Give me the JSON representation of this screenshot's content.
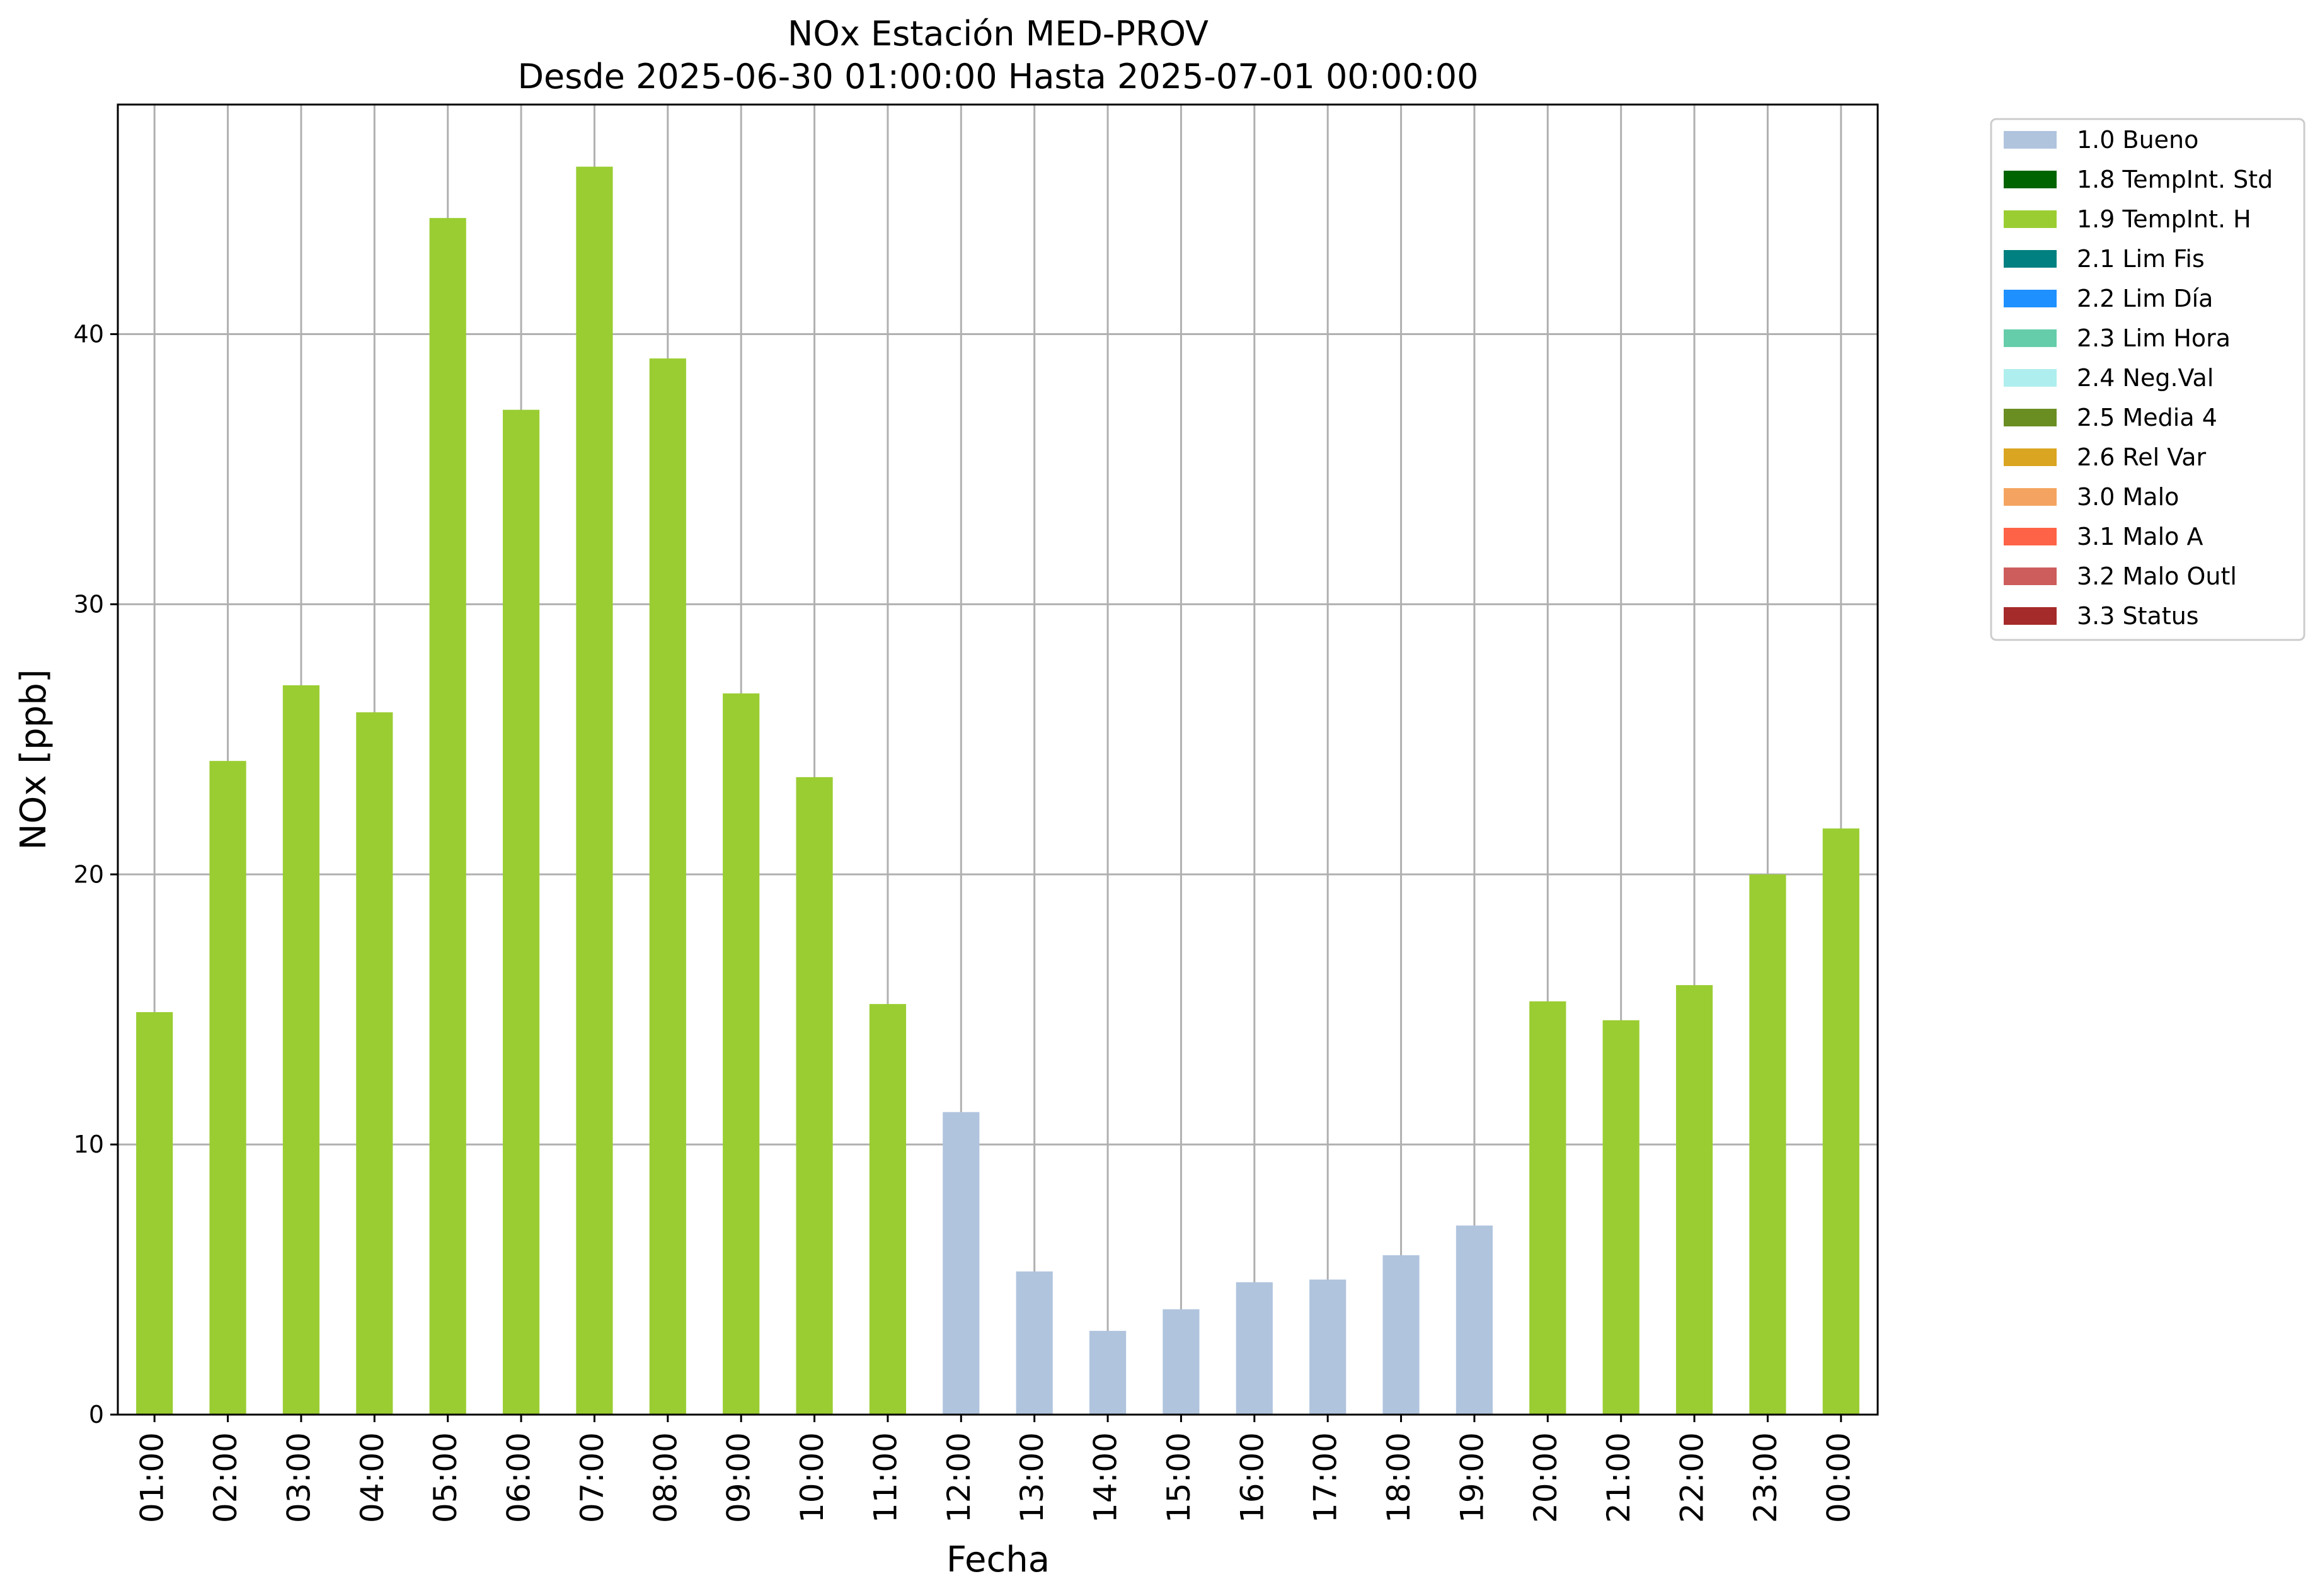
{
  "chart_data": {
    "type": "bar",
    "title": "NOx Estación MED-PROV",
    "subtitle": "Desde 2025-06-30 01:00:00 Hasta 2025-07-01 00:00:00",
    "xlabel": "Fecha",
    "ylabel": "NOx [ppb]",
    "ylim": [
      0,
      48.5
    ],
    "yticks": [
      0,
      10,
      20,
      30,
      40
    ],
    "grid": true,
    "legend_position": "outside-top-right",
    "categories": [
      "01:00",
      "02:00",
      "03:00",
      "04:00",
      "05:00",
      "06:00",
      "07:00",
      "08:00",
      "09:00",
      "10:00",
      "11:00",
      "12:00",
      "13:00",
      "14:00",
      "15:00",
      "16:00",
      "17:00",
      "18:00",
      "19:00",
      "20:00",
      "21:00",
      "22:00",
      "23:00",
      "00:00"
    ],
    "values": [
      14.9,
      24.2,
      27.0,
      26.0,
      44.3,
      37.2,
      46.2,
      39.1,
      26.7,
      23.6,
      15.2,
      11.2,
      5.3,
      3.1,
      3.9,
      4.9,
      5.0,
      5.9,
      7.0,
      15.3,
      14.6,
      15.9,
      20.0,
      21.7
    ],
    "flags": [
      "1.9 TempInt. H",
      "1.9 TempInt. H",
      "1.9 TempInt. H",
      "1.9 TempInt. H",
      "1.9 TempInt. H",
      "1.9 TempInt. H",
      "1.9 TempInt. H",
      "1.9 TempInt. H",
      "1.9 TempInt. H",
      "1.9 TempInt. H",
      "1.9 TempInt. H",
      "1.0 Bueno",
      "1.0 Bueno",
      "1.0 Bueno",
      "1.0 Bueno",
      "1.0 Bueno",
      "1.0 Bueno",
      "1.0 Bueno",
      "1.0 Bueno",
      "1.9 TempInt. H",
      "1.9 TempInt. H",
      "1.9 TempInt. H",
      "1.9 TempInt. H",
      "1.9 TempInt. H"
    ],
    "legend": [
      {
        "label": "1.0 Bueno",
        "color": "#b0c4de"
      },
      {
        "label": "1.8 TempInt. Std",
        "color": "#006400"
      },
      {
        "label": "1.9 TempInt. H",
        "color": "#9acd32"
      },
      {
        "label": "2.1 Lim Fis",
        "color": "#008080"
      },
      {
        "label": "2.2 Lim Día",
        "color": "#1e90ff"
      },
      {
        "label": "2.3 Lim Hora",
        "color": "#66cdaa"
      },
      {
        "label": "2.4 Neg.Val",
        "color": "#afeeee"
      },
      {
        "label": "2.5 Media 4",
        "color": "#6b8e23"
      },
      {
        "label": "2.6 Rel Var",
        "color": "#daa520"
      },
      {
        "label": "3.0 Malo",
        "color": "#f4a460"
      },
      {
        "label": "3.1 Malo A",
        "color": "#ff6347"
      },
      {
        "label": "3.2 Malo Outl",
        "color": "#cd5c5c"
      },
      {
        "label": "3.3 Status",
        "color": "#a52a2a"
      }
    ]
  }
}
